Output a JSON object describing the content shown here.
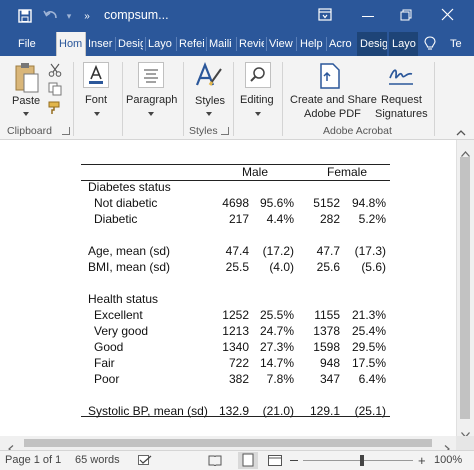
{
  "titlebar": {
    "title": "compsum...",
    "save_icon": "save-icon",
    "undo_icon": "undo-icon",
    "more_icon": "customize-toolbar-icon",
    "right_icons": [
      "ribbon-display-options-icon",
      "minimize-icon",
      "restore-icon",
      "close-icon"
    ]
  },
  "tabs": [
    {
      "label": "File"
    },
    {
      "label": "Hom"
    },
    {
      "label": "Inser"
    },
    {
      "label": "Desig"
    },
    {
      "label": "Layo"
    },
    {
      "label": "Refei"
    },
    {
      "label": "Maili"
    },
    {
      "label": "Revie"
    },
    {
      "label": "View"
    },
    {
      "label": "Help"
    },
    {
      "label": "Acro"
    },
    {
      "label": "Desig"
    },
    {
      "label": "Layo"
    },
    {
      "label": "Te"
    }
  ],
  "ribbon": {
    "paste_label": "Paste",
    "clipboard_group": "Clipboard",
    "font_label": "Font",
    "paragraph_label": "Paragraph",
    "styles_label": "Styles",
    "styles_group": "Styles",
    "editing_label": "Editing",
    "create_share_line1": "Create and Share",
    "create_share_line2": "Adobe PDF",
    "request_line1": "Request",
    "request_line2": "Signatures",
    "acrobat_group": "Adobe Acrobat"
  },
  "table": {
    "header_male": "Male",
    "header_female": "Female",
    "rows": [
      {
        "label": "Diabetes status",
        "m_n": "",
        "m_p": "",
        "f_n": "",
        "f_p": ""
      },
      {
        "label": "  Not diabetic",
        "m_n": "4698",
        "m_p": "95.6%",
        "f_n": "5152",
        "f_p": "94.8%"
      },
      {
        "label": "  Diabetic",
        "m_n": "217",
        "m_p": "4.4%",
        "f_n": "282",
        "f_p": "5.2%"
      },
      {
        "label": "Age, mean (sd)",
        "m_n": "47.4",
        "m_p": "(17.2)",
        "f_n": "47.7",
        "f_p": "(17.3)"
      },
      {
        "label": "BMI, mean (sd)",
        "m_n": "25.5",
        "m_p": "(4.0)",
        "f_n": "25.6",
        "f_p": "(5.6)"
      },
      {
        "label": "Health status",
        "m_n": "",
        "m_p": "",
        "f_n": "",
        "f_p": ""
      },
      {
        "label": "  Excellent",
        "m_n": "1252",
        "m_p": "25.5%",
        "f_n": "1155",
        "f_p": "21.3%"
      },
      {
        "label": "  Very good",
        "m_n": "1213",
        "m_p": "24.7%",
        "f_n": "1378",
        "f_p": "25.4%"
      },
      {
        "label": "  Good",
        "m_n": "1340",
        "m_p": "27.3%",
        "f_n": "1598",
        "f_p": "29.5%"
      },
      {
        "label": "  Fair",
        "m_n": "722",
        "m_p": "14.7%",
        "f_n": "948",
        "f_p": "17.5%"
      },
      {
        "label": "  Poor",
        "m_n": "382",
        "m_p": "7.8%",
        "f_n": "347",
        "f_p": "6.4%"
      },
      {
        "label": "Systolic BP, mean (sd)",
        "m_n": "132.9",
        "m_p": "(21.0)",
        "f_n": "129.1",
        "f_p": "(25.1)"
      }
    ]
  },
  "status": {
    "page": "Page 1 of 1",
    "words": "65 words",
    "zoom": "100%"
  },
  "colors": {
    "word_blue": "#2b579a",
    "ribbon_bg": "#f3f3f3"
  }
}
